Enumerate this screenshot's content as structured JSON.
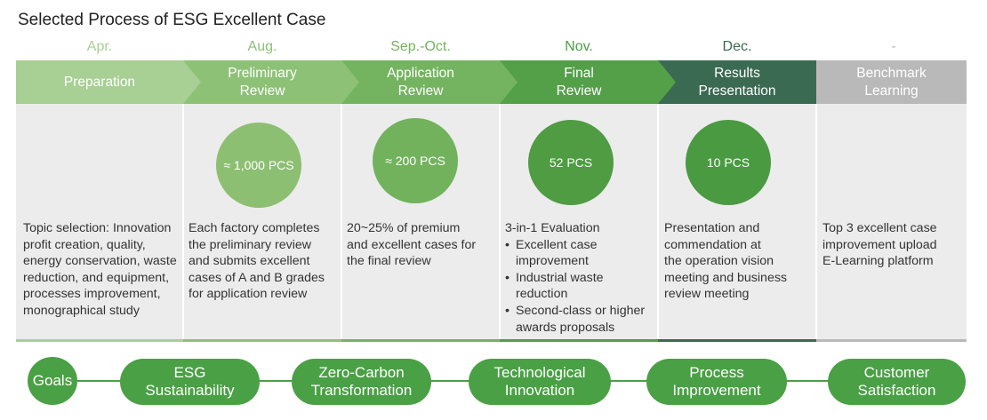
{
  "title": "Selected Process of ESG Excellent Case",
  "colors": {
    "stage_1": "#a8cf94",
    "stage_2": "#8dc176",
    "stage_3": "#74b35f",
    "stage_4": "#53a048",
    "stage_5": "#3a6a52",
    "stage_6": "#b9b9b9",
    "bubble_2": "#8dbf72",
    "bubble_3": "#72b25c",
    "bubble_4": "#4f9c43",
    "bubble_5": "#4a9a42",
    "goal": "#4aa045",
    "panel": "#ececec"
  },
  "months": [
    "Apr.",
    "Aug.",
    "Sep.-Oct.",
    "Nov.",
    "Dec.",
    "-"
  ],
  "stages": [
    "Preparation",
    "Preliminary\nReview",
    "Application\nReview",
    "Final\nReview",
    "Results\nPresentation",
    "Benchmark\nLearning"
  ],
  "bubbles": {
    "b2": "≈ 1,000 PCS",
    "b3": "≈ 200 PCS",
    "b4": "52 PCS",
    "b5": "10 PCS"
  },
  "descriptions": {
    "d1": "Topic selection: Innovation\nprofit creation, quality,\nenergy conservation, waste\nreduction, and equipment,\nprocesses improvement,\nmonographical study",
    "d2": "Each factory completes\nthe preliminary review\nand submits excellent\ncases of A and B grades\nfor application review",
    "d3": "20~25% of premium\nand excellent cases for\nthe final review",
    "d4_heading": "3-in-1 Evaluation",
    "d4_items": [
      "Excellent case\nimprovement",
      "Industrial waste\nreduction",
      "Second-class or higher\nawards proposals"
    ],
    "d5": "Presentation and\ncommendation at\nthe operation vision\nmeeting and business\nreview meeting",
    "d6": "Top 3 excellent case\nimprovement upload\nE-Learning platform"
  },
  "bullet_symbol": "•",
  "goals": [
    "Goals",
    "ESG\nSustainability",
    "Zero-Carbon\nTransformation",
    "Technological\nInnovation",
    "Process\nImprovement",
    "Customer\nSatisfaction"
  ]
}
